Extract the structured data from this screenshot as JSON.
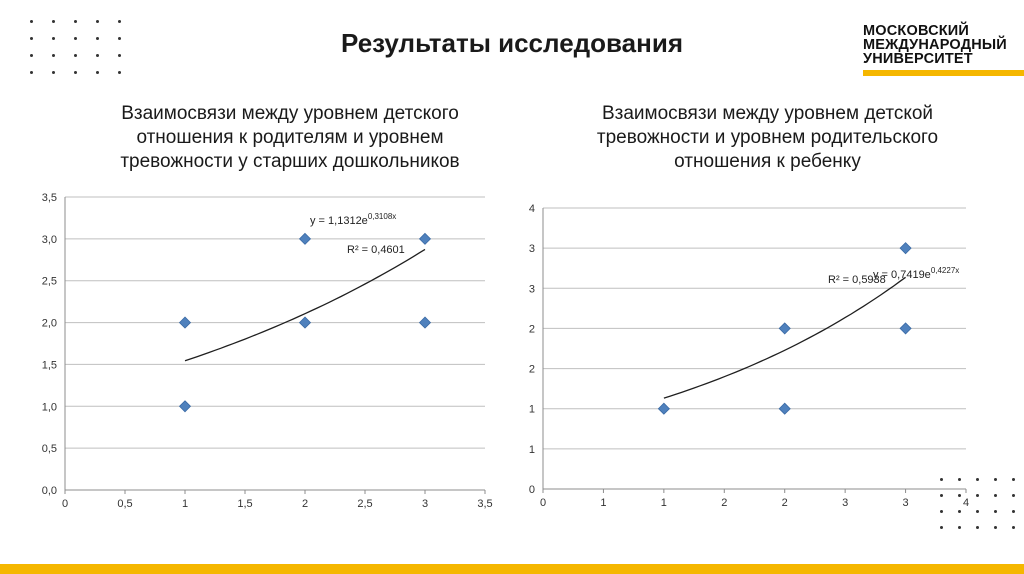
{
  "slide": {
    "title": "Результаты исследования",
    "logo_lines": [
      "МОСКОВСКИЙ",
      "МЕЖДУНАРОДНЫЙ",
      "УНИВЕРСИТЕТ"
    ],
    "accent_color": "#f5b700",
    "marker_color": "#4f81bd"
  },
  "chart_data": [
    {
      "type": "scatter",
      "title": "Взаимосвязи между уровнем детского отношения к родителям и уровнем тревожности у старших дошкольников",
      "xlim": [
        0,
        3.5
      ],
      "ylim": [
        0,
        3.5
      ],
      "x_ticks": [
        "0",
        "0,5",
        "1",
        "1,5",
        "2",
        "2,5",
        "3",
        "3,5"
      ],
      "y_ticks": [
        "0,0",
        "0,5",
        "1,0",
        "1,5",
        "2,0",
        "2,5",
        "3,0",
        "3,5"
      ],
      "points": [
        [
          1,
          2
        ],
        [
          1,
          1
        ],
        [
          2,
          3
        ],
        [
          2,
          2
        ],
        [
          3,
          3
        ],
        [
          3,
          2
        ]
      ],
      "trendline": {
        "type": "exponential",
        "a": 1.1312,
        "b": 0.3108,
        "x_from": 1,
        "x_to": 3
      },
      "equation_text": "y = 1,1312e",
      "equation_exp": "0,3108x",
      "r2_text": "R² = 0,4601",
      "grid": "horizontal"
    },
    {
      "type": "scatter",
      "title": "Взаимосвязи между уровнем детской тревожности и уровнем родительского отношения к ребенку",
      "xlim": [
        0,
        3.5
      ],
      "ylim": [
        0,
        3.5
      ],
      "x_ticks": [
        "0",
        "1",
        "1",
        "2",
        "2",
        "3",
        "3",
        "4"
      ],
      "y_ticks": [
        "0",
        "1",
        "1",
        "2",
        "2",
        "3",
        "3",
        "4"
      ],
      "points": [
        [
          1,
          1
        ],
        [
          2,
          2
        ],
        [
          2,
          1
        ],
        [
          3,
          3
        ],
        [
          3,
          2
        ]
      ],
      "trendline": {
        "type": "exponential",
        "a": 0.7419,
        "b": 0.4227,
        "x_from": 1,
        "x_to": 3
      },
      "equation_text": "y = 0,7419e",
      "equation_exp": "0,4227x",
      "r2_text": "R² = 0,5938",
      "grid": "horizontal"
    }
  ]
}
